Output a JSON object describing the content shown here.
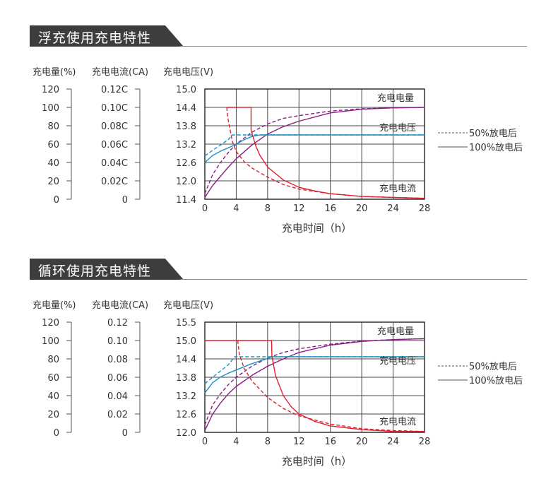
{
  "colors": {
    "capacity": "#8b1d82",
    "voltage": "#1f8fc6",
    "current": "#e0202c",
    "grid": "#444444",
    "title_bg": "#3d3d3d"
  },
  "sections": [
    {
      "title": "浮充使用充电特性",
      "col_headers": [
        "充电量(%)",
        "充电电流(CA)",
        "充电电压(V)"
      ],
      "xlabel": "充电时间（h）",
      "legend": [
        "50%放电后",
        "100%放电后"
      ]
    },
    {
      "title": "循环使用充电特性",
      "col_headers": [
        "充电量(%)",
        "充电电流(CA)",
        "充电电压(V)"
      ],
      "xlabel": "充电时间（h）",
      "legend": [
        "50%放电后",
        "100%放电后"
      ]
    }
  ],
  "chart_data": [
    {
      "type": "line",
      "title": "浮充使用充电特性",
      "xlabel": "充电时间（h）",
      "x_ticks": [
        "0",
        "4",
        "8",
        "12",
        "16",
        "20",
        "24",
        "28"
      ],
      "xlim": [
        0,
        28
      ],
      "axes": {
        "capacity": {
          "label": "充电量(%)",
          "ticks": [
            "120",
            "100",
            "80",
            "60",
            "40",
            "20",
            "0"
          ],
          "lim": [
            0,
            120
          ]
        },
        "current": {
          "label": "充电电流(CA)",
          "ticks": [
            "0.12C",
            "0.10C",
            "0.08C",
            "0.06C",
            "0.04C",
            "0.02C",
            "0"
          ],
          "lim": [
            0,
            0.12
          ]
        },
        "voltage": {
          "label": "充电电压(V)",
          "ticks": [
            "15.0",
            "14.4",
            "13.8",
            "13.2",
            "12.6",
            "12.0",
            "11.4"
          ],
          "lim": [
            11.4,
            15.0
          ]
        }
      },
      "series_labels": {
        "capacity": "充电电量",
        "voltage": "充电电压",
        "current": "充电电流"
      },
      "legend": {
        "dashed": "50%放电后",
        "solid": "100%放电后"
      },
      "series": [
        {
          "kind": "capacity",
          "style": "solid",
          "x": [
            0,
            1,
            2,
            3,
            4,
            6,
            8,
            10,
            12,
            16,
            20,
            24,
            28
          ],
          "y": [
            2,
            15,
            25,
            35,
            44,
            59,
            71,
            79,
            85,
            94,
            98,
            99.5,
            100
          ]
        },
        {
          "kind": "capacity",
          "style": "dashed",
          "x": [
            0,
            1,
            2,
            3,
            4,
            6,
            8,
            10,
            12,
            16,
            20,
            24,
            28
          ],
          "y": [
            6,
            27,
            40,
            51,
            60,
            73,
            82,
            88,
            91,
            96,
            98.5,
            99.5,
            100
          ]
        },
        {
          "kind": "voltage",
          "style": "solid",
          "x": [
            0,
            1,
            2,
            3,
            4,
            5,
            6,
            7,
            28
          ],
          "y": [
            12.6,
            12.83,
            12.97,
            13.08,
            13.2,
            13.34,
            13.45,
            13.5,
            13.5
          ]
        },
        {
          "kind": "voltage",
          "style": "dashed",
          "x": [
            0,
            1,
            2,
            3,
            3.5,
            28
          ],
          "y": [
            12.82,
            13.0,
            13.17,
            13.35,
            13.5,
            13.5
          ]
        },
        {
          "kind": "current",
          "style": "solid",
          "x": [
            2.8,
            5.9,
            5.9,
            6.5,
            7,
            8,
            10,
            12,
            14,
            16,
            20,
            24,
            28
          ],
          "y": [
            0.1,
            0.1,
            0.075,
            0.058,
            0.048,
            0.035,
            0.021,
            0.013,
            0.009,
            0.006,
            0.003,
            0.002,
            0.001
          ]
        },
        {
          "kind": "current",
          "style": "dashed",
          "x": [
            2.8,
            2.9,
            3.5,
            4,
            5,
            6,
            8,
            10,
            12,
            16,
            20,
            24,
            28
          ],
          "y": [
            0.1,
            0.09,
            0.063,
            0.052,
            0.041,
            0.034,
            0.024,
            0.016,
            0.011,
            0.006,
            0.003,
            0.002,
            0.001
          ]
        }
      ]
    },
    {
      "type": "line",
      "title": "循环使用充电特性",
      "xlabel": "充电时间（h）",
      "x_ticks": [
        "0",
        "4",
        "8",
        "12",
        "16",
        "20",
        "24",
        "28"
      ],
      "xlim": [
        0,
        28
      ],
      "axes": {
        "capacity": {
          "label": "充电量(%)",
          "ticks": [
            "120",
            "100",
            "80",
            "60",
            "40",
            "20",
            "0"
          ],
          "lim": [
            0,
            120
          ]
        },
        "current": {
          "label": "充电电流(CA)",
          "ticks": [
            "0.12",
            "0.10",
            "0.08",
            "0.06",
            "0.04",
            "0.02",
            "0"
          ],
          "lim": [
            0,
            0.12
          ]
        },
        "voltage": {
          "label": "充电电压(V)",
          "ticks": [
            "15.5",
            "15.0",
            "14.4",
            "13.8",
            "13.2",
            "12.6",
            "12.0"
          ],
          "lim": [
            12.0,
            15.5
          ]
        }
      },
      "series_labels": {
        "capacity": "充电电量",
        "voltage": "充电电压",
        "current": "充电电流"
      },
      "legend": {
        "dashed": "50%放电后",
        "solid": "100%放电后"
      },
      "series": [
        {
          "kind": "capacity",
          "style": "solid",
          "x": [
            0,
            1,
            2,
            3,
            4,
            6,
            8,
            10,
            12,
            16,
            20,
            24,
            28
          ],
          "y": [
            2,
            20,
            32,
            42,
            50,
            62,
            72,
            80,
            87,
            95,
            99,
            101,
            102
          ]
        },
        {
          "kind": "capacity",
          "style": "dashed",
          "x": [
            0,
            1,
            2,
            3,
            4,
            6,
            8,
            10,
            12,
            16,
            20,
            24,
            28
          ],
          "y": [
            8,
            30,
            42,
            52,
            60,
            72,
            81,
            87,
            91,
            96,
            99.5,
            101,
            102
          ]
        },
        {
          "kind": "voltage",
          "style": "solid",
          "x": [
            0,
            1,
            2,
            3,
            4,
            6,
            8,
            8.6,
            28
          ],
          "y": [
            13.25,
            13.58,
            13.76,
            13.88,
            13.98,
            14.18,
            14.35,
            14.4,
            14.4
          ]
        },
        {
          "kind": "voltage",
          "style": "dashed",
          "x": [
            0,
            1,
            2,
            3,
            3.8,
            28
          ],
          "y": [
            13.55,
            13.75,
            13.95,
            14.15,
            14.4,
            14.4
          ]
        },
        {
          "kind": "current",
          "style": "solid",
          "x": [
            0,
            8.5,
            8.55,
            9,
            10,
            11,
            12,
            14,
            16,
            20,
            24,
            28
          ],
          "y": [
            0.1,
            0.1,
            0.083,
            0.062,
            0.04,
            0.028,
            0.02,
            0.012,
            0.007,
            0.003,
            0.001,
            0.001
          ]
        },
        {
          "kind": "current",
          "style": "dashed",
          "x": [
            4.2,
            4.4,
            5,
            6,
            8,
            10,
            12,
            16,
            20,
            24,
            28
          ],
          "y": [
            0.1,
            0.085,
            0.07,
            0.056,
            0.038,
            0.026,
            0.018,
            0.009,
            0.004,
            0.002,
            0.001
          ]
        }
      ]
    }
  ]
}
